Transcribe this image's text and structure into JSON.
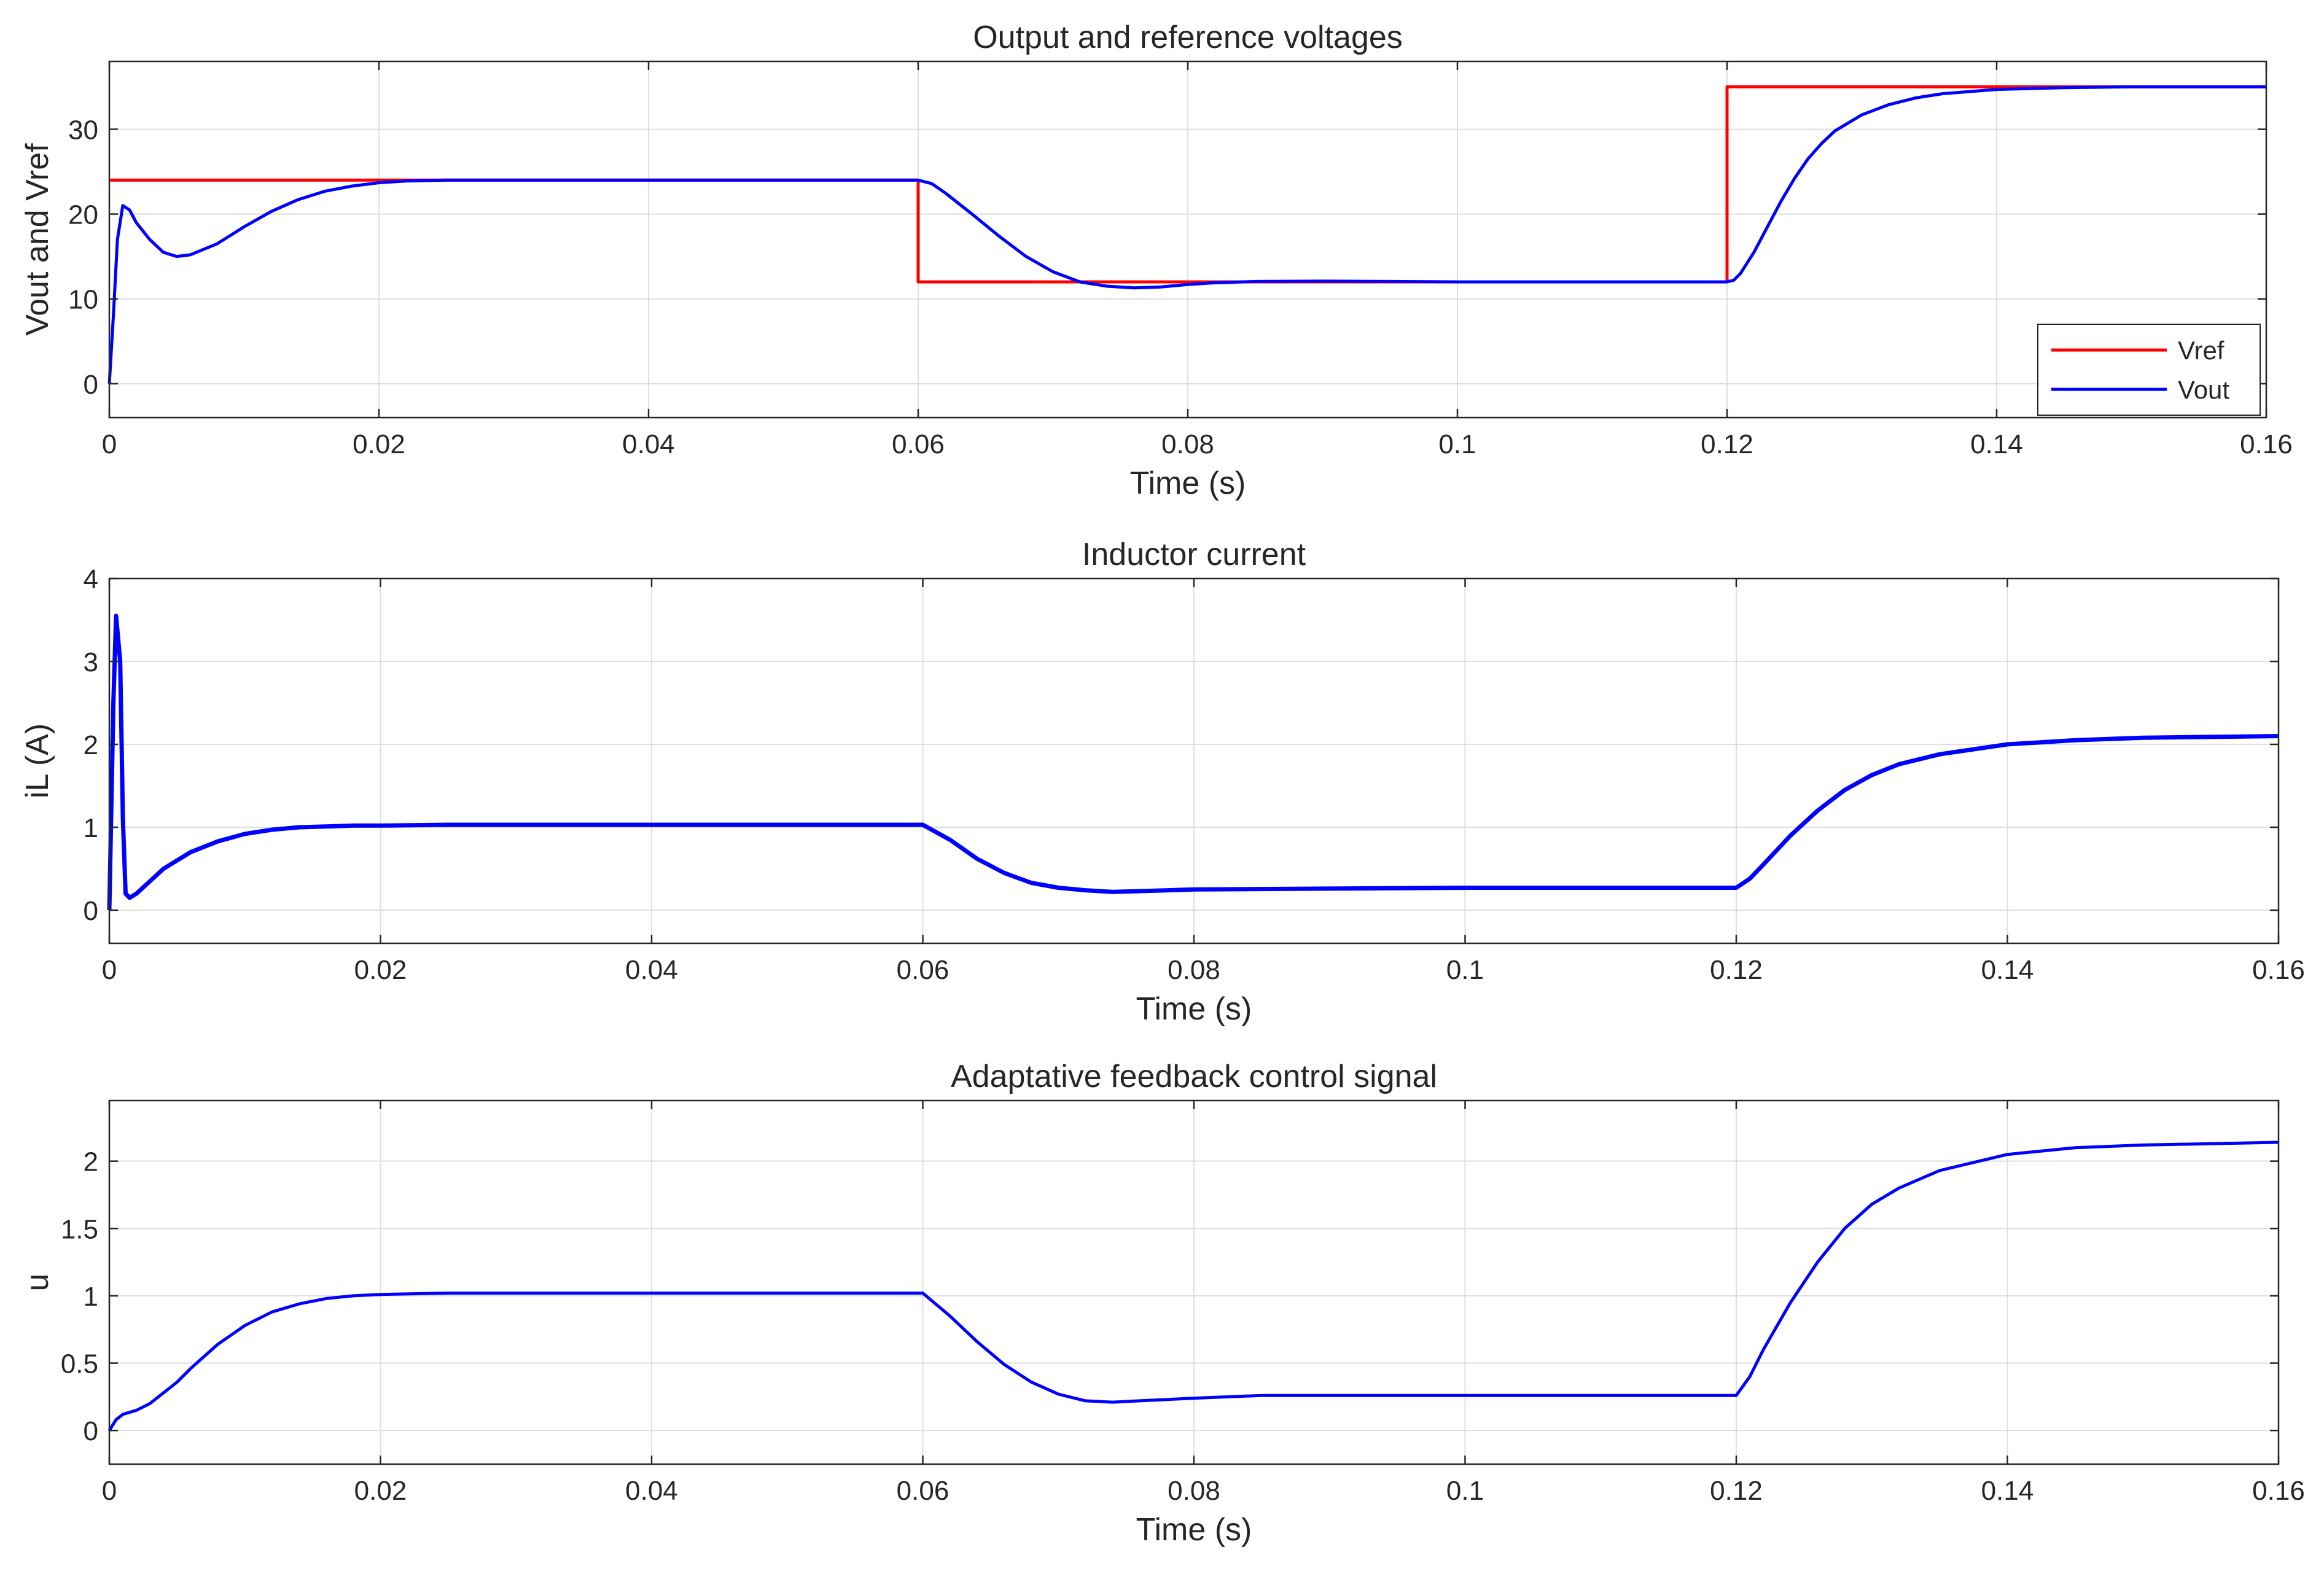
{
  "chart_data": [
    {
      "type": "line",
      "title": "Output and reference voltages",
      "xlabel": "Time (s)",
      "ylabel": "Vout and Vref",
      "xlim": [
        0,
        0.16
      ],
      "ylim": [
        -4,
        38
      ],
      "xticks": [
        0,
        0.02,
        0.04,
        0.06,
        0.08,
        0.1,
        0.12,
        0.14,
        0.16
      ],
      "xtick_labels": [
        "0",
        "0.02",
        "0.04",
        "0.06",
        "0.08",
        "0.1",
        "0.12",
        "0.14",
        "0.16"
      ],
      "yticks": [
        0,
        10,
        20,
        30
      ],
      "ytick_labels": [
        "0",
        "10",
        "20",
        "30"
      ],
      "grid": true,
      "legend_position": "bottom-right",
      "series": [
        {
          "name": "Vref",
          "color": "#ff0000",
          "x": [
            0,
            0.06,
            0.06,
            0.12,
            0.12,
            0.16
          ],
          "y": [
            24,
            24,
            12,
            12,
            35,
            35
          ]
        },
        {
          "name": "Vout",
          "color": "#0000ff",
          "x": [
            0,
            0.0003,
            0.0006,
            0.001,
            0.0015,
            0.002,
            0.003,
            0.004,
            0.005,
            0.006,
            0.008,
            0.01,
            0.012,
            0.014,
            0.016,
            0.018,
            0.02,
            0.022,
            0.025,
            0.03,
            0.04,
            0.05,
            0.06,
            0.061,
            0.062,
            0.064,
            0.066,
            0.068,
            0.07,
            0.072,
            0.074,
            0.076,
            0.078,
            0.08,
            0.082,
            0.085,
            0.09,
            0.1,
            0.11,
            0.12,
            0.1205,
            0.121,
            0.122,
            0.123,
            0.124,
            0.125,
            0.126,
            0.127,
            0.128,
            0.13,
            0.132,
            0.134,
            0.136,
            0.14,
            0.145,
            0.15,
            0.155,
            0.16
          ],
          "y": [
            0,
            8,
            17,
            21,
            20.5,
            19,
            17,
            15.5,
            15,
            15.2,
            16.5,
            18.5,
            20.3,
            21.7,
            22.7,
            23.3,
            23.7,
            23.9,
            24,
            24,
            24,
            24,
            24,
            23.6,
            22.5,
            20,
            17.4,
            15,
            13.2,
            12,
            11.5,
            11.3,
            11.4,
            11.7,
            11.9,
            12.05,
            12.1,
            12,
            12,
            12,
            12.2,
            13,
            15.5,
            18.5,
            21.5,
            24.2,
            26.5,
            28.3,
            29.8,
            31.7,
            32.9,
            33.7,
            34.2,
            34.7,
            34.9,
            35,
            35,
            35
          ]
        }
      ]
    },
    {
      "type": "line",
      "title": "Inductor current",
      "xlabel": "Time (s)",
      "ylabel": "iL (A)",
      "xlim": [
        0,
        0.16
      ],
      "ylim": [
        -0.4,
        4
      ],
      "xticks": [
        0,
        0.02,
        0.04,
        0.06,
        0.08,
        0.1,
        0.12,
        0.14,
        0.16
      ],
      "xtick_labels": [
        "0",
        "0.02",
        "0.04",
        "0.06",
        "0.08",
        "0.1",
        "0.12",
        "0.14",
        "0.16"
      ],
      "yticks": [
        0,
        1,
        2,
        3,
        4
      ],
      "ytick_labels": [
        "0",
        "1",
        "2",
        "3",
        "4"
      ],
      "grid": true,
      "series": [
        {
          "name": "",
          "color": "#0000ff",
          "x": [
            0,
            0.0003,
            0.0005,
            0.0008,
            0.001,
            0.0012,
            0.0015,
            0.002,
            0.003,
            0.004,
            0.006,
            0.008,
            0.01,
            0.012,
            0.014,
            0.016,
            0.018,
            0.02,
            0.025,
            0.03,
            0.04,
            0.05,
            0.06,
            0.062,
            0.064,
            0.066,
            0.068,
            0.07,
            0.072,
            0.074,
            0.076,
            0.08,
            0.09,
            0.1,
            0.11,
            0.12,
            0.121,
            0.122,
            0.124,
            0.126,
            0.128,
            0.13,
            0.132,
            0.135,
            0.14,
            0.145,
            0.15,
            0.16
          ],
          "y": [
            0,
            2.5,
            3.55,
            3,
            1.1,
            0.2,
            0.15,
            0.2,
            0.35,
            0.5,
            0.7,
            0.83,
            0.92,
            0.97,
            1,
            1.01,
            1.02,
            1.02,
            1.03,
            1.03,
            1.03,
            1.03,
            1.03,
            0.85,
            0.62,
            0.45,
            0.33,
            0.27,
            0.24,
            0.22,
            0.23,
            0.25,
            0.26,
            0.27,
            0.27,
            0.27,
            0.38,
            0.55,
            0.9,
            1.2,
            1.45,
            1.63,
            1.76,
            1.88,
            2.0,
            2.05,
            2.08,
            2.1
          ]
        }
      ]
    },
    {
      "type": "line",
      "title": "Adaptative feedback control signal",
      "xlabel": "Time (s)",
      "ylabel": "u",
      "xlim": [
        0,
        0.16
      ],
      "ylim": [
        -0.25,
        2.45
      ],
      "xticks": [
        0,
        0.02,
        0.04,
        0.06,
        0.08,
        0.1,
        0.12,
        0.14,
        0.16
      ],
      "xtick_labels": [
        "0",
        "0.02",
        "0.04",
        "0.06",
        "0.08",
        "0.1",
        "0.12",
        "0.14",
        "0.16"
      ],
      "yticks": [
        0,
        0.5,
        1,
        1.5,
        2
      ],
      "ytick_labels": [
        "0",
        "0.5",
        "1",
        "1.5",
        "2"
      ],
      "grid": true,
      "series": [
        {
          "name": "",
          "color": "#0000ff",
          "x": [
            0,
            0.0005,
            0.001,
            0.002,
            0.003,
            0.004,
            0.005,
            0.006,
            0.008,
            0.01,
            0.012,
            0.014,
            0.016,
            0.018,
            0.02,
            0.025,
            0.03,
            0.04,
            0.05,
            0.06,
            0.062,
            0.064,
            0.066,
            0.068,
            0.07,
            0.072,
            0.074,
            0.076,
            0.08,
            0.085,
            0.09,
            0.1,
            0.11,
            0.12,
            0.121,
            0.122,
            0.124,
            0.126,
            0.128,
            0.13,
            0.132,
            0.135,
            0.14,
            0.145,
            0.15,
            0.155,
            0.16
          ],
          "y": [
            0,
            0.08,
            0.12,
            0.15,
            0.2,
            0.28,
            0.36,
            0.46,
            0.64,
            0.78,
            0.88,
            0.94,
            0.98,
            1.0,
            1.01,
            1.02,
            1.02,
            1.02,
            1.02,
            1.02,
            0.85,
            0.66,
            0.49,
            0.36,
            0.27,
            0.22,
            0.21,
            0.22,
            0.24,
            0.26,
            0.26,
            0.26,
            0.26,
            0.26,
            0.4,
            0.6,
            0.95,
            1.25,
            1.5,
            1.68,
            1.8,
            1.93,
            2.05,
            2.1,
            2.12,
            2.13,
            2.14
          ]
        }
      ]
    }
  ]
}
